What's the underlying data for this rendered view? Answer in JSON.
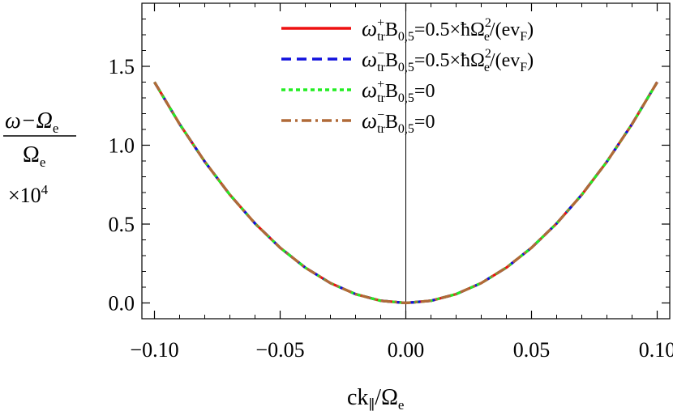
{
  "chart_data": {
    "type": "line",
    "xlabel": {
      "main": "ck",
      "sub": "∥",
      "slash": "/Ω",
      "sub2": "e"
    },
    "ylabel": {
      "num_a": "ω−Ω",
      "num_sub": "e",
      "den": "Ω",
      "den_sub": "e",
      "scale": "×10",
      "scale_sup": "4"
    },
    "xlim": [
      -0.105,
      0.105
    ],
    "ylim": [
      -0.1,
      1.9
    ],
    "grid": false,
    "legend_position": "top-right",
    "x_ticks": [
      {
        "value": -0.1,
        "label": "−0.10"
      },
      {
        "value": -0.05,
        "label": "−0.05"
      },
      {
        "value": 0.0,
        "label": "0.00"
      },
      {
        "value": 0.05,
        "label": "0.05"
      },
      {
        "value": 0.1,
        "label": "0.10"
      }
    ],
    "y_ticks": [
      {
        "value": 0.0,
        "label": "0.0"
      },
      {
        "value": 0.5,
        "label": "0.5"
      },
      {
        "value": 1.0,
        "label": "1.0"
      },
      {
        "value": 1.5,
        "label": "1.5"
      }
    ],
    "x": [
      -0.1,
      -0.09,
      -0.08,
      -0.07,
      -0.06,
      -0.05,
      -0.04,
      -0.03,
      -0.02,
      -0.01,
      0.0,
      0.01,
      0.02,
      0.03,
      0.04,
      0.05,
      0.06,
      0.07,
      0.08,
      0.09,
      0.1
    ],
    "series": [
      {
        "legend": {
          "sym": "ω",
          "sup": "+",
          "sub": "tr",
          "b": "B",
          "bsub": "0,5",
          "eq": "=0.5×ħΩ",
          "eqsup": "2",
          "eqsub": "e",
          "tail": "/(ev",
          "tailsub": "F",
          "close": ")"
        },
        "color": "#ee1111",
        "dash": "none",
        "values": [
          1.4,
          1.134,
          0.896,
          0.686,
          0.504,
          0.35,
          0.224,
          0.126,
          0.056,
          0.014,
          0.0,
          0.014,
          0.056,
          0.126,
          0.224,
          0.35,
          0.504,
          0.686,
          0.896,
          1.134,
          1.4
        ]
      },
      {
        "legend": {
          "sym": "ω",
          "sup": "−",
          "sub": "tr",
          "b": "B",
          "bsub": "0,5",
          "eq": "=0.5×ħΩ",
          "eqsup": "2",
          "eqsub": "e",
          "tail": "/(ev",
          "tailsub": "F",
          "close": ")"
        },
        "color": "#1111dd",
        "dash": "12,7",
        "values": [
          1.4,
          1.134,
          0.896,
          0.686,
          0.504,
          0.35,
          0.224,
          0.126,
          0.056,
          0.014,
          0.0,
          0.014,
          0.056,
          0.126,
          0.224,
          0.35,
          0.504,
          0.686,
          0.896,
          1.134,
          1.4
        ]
      },
      {
        "legend": {
          "sym": "ω",
          "sup": "+",
          "sub": "tr",
          "b": "B",
          "bsub": "0,5",
          "eq": "=0"
        },
        "color": "#22ee22",
        "dash": "5,4",
        "values": [
          1.4,
          1.134,
          0.896,
          0.686,
          0.504,
          0.35,
          0.224,
          0.126,
          0.056,
          0.014,
          0.0,
          0.014,
          0.056,
          0.126,
          0.224,
          0.35,
          0.504,
          0.686,
          0.896,
          1.134,
          1.4
        ]
      },
      {
        "legend": {
          "sym": "ω",
          "sup": "−",
          "sub": "tr",
          "b": "B",
          "bsub": "0,5",
          "eq": "=0"
        },
        "color": "#b06a38",
        "dash": "12,5,3,5",
        "values": [
          1.4,
          1.134,
          0.896,
          0.686,
          0.504,
          0.35,
          0.224,
          0.126,
          0.056,
          0.014,
          0.0,
          0.014,
          0.056,
          0.126,
          0.224,
          0.35,
          0.504,
          0.686,
          0.896,
          1.134,
          1.4
        ]
      }
    ]
  }
}
